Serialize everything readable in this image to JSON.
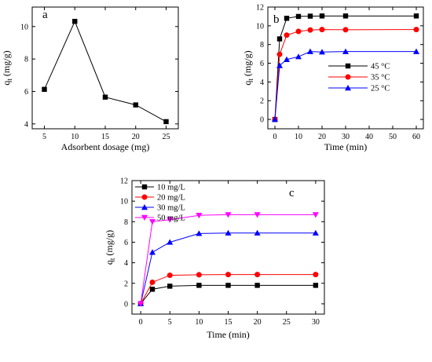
{
  "chart_data": [
    {
      "type": "line",
      "panel_label": "a",
      "xlabel": "Adsorbent dosage (mg)",
      "ylabel_main": "q",
      "ylabel_sub": "t",
      "ylabel_unit": " (mg/g)",
      "xlim": [
        3,
        27
      ],
      "ylim": [
        3.7,
        11.2
      ],
      "xticks": [
        5,
        10,
        15,
        20,
        25
      ],
      "yticks": [
        4,
        6,
        8,
        10
      ],
      "grid": false,
      "series": [
        {
          "x": [
            5,
            10,
            15,
            20,
            25
          ],
          "values": [
            6.13,
            10.32,
            5.65,
            5.17,
            4.14
          ],
          "color": "#000000",
          "marker": "square"
        }
      ]
    },
    {
      "type": "line",
      "panel_label": "b",
      "xlabel": "Time (min)",
      "ylabel_main": "q",
      "ylabel_sub": "t",
      "ylabel_unit": " (mg/g)",
      "xlim": [
        -3,
        63
      ],
      "ylim": [
        -1,
        12
      ],
      "xticks": [
        0,
        10,
        20,
        30,
        40,
        50,
        60
      ],
      "yticks": [
        0,
        2,
        4,
        6,
        8,
        10,
        12
      ],
      "grid": false,
      "legend_position": "right",
      "series": [
        {
          "name": "45 °C",
          "x": [
            0,
            2,
            5,
            10,
            15,
            20,
            30,
            60
          ],
          "values": [
            0,
            8.6,
            10.8,
            11.0,
            11.03,
            11.05,
            11.05,
            11.05
          ],
          "color": "#000000",
          "marker": "square"
        },
        {
          "name": "35 °C",
          "x": [
            0,
            2,
            5,
            10,
            15,
            20,
            30,
            60
          ],
          "values": [
            0,
            6.95,
            9.0,
            9.4,
            9.55,
            9.6,
            9.58,
            9.6
          ],
          "color": "#ff0000",
          "marker": "circle"
        },
        {
          "name": "25 °C",
          "x": [
            0,
            2,
            5,
            10,
            15,
            20,
            30,
            60
          ],
          "values": [
            0,
            5.75,
            6.4,
            6.7,
            7.25,
            7.2,
            7.25,
            7.25
          ],
          "color": "#0000ff",
          "marker": "triangle-up"
        }
      ]
    },
    {
      "type": "line",
      "panel_label": "c",
      "xlabel": "Time (min)",
      "ylabel_main": "q",
      "ylabel_sub": "t",
      "ylabel_unit": " (mg/g)",
      "xlim": [
        -1.5,
        31.5
      ],
      "ylim": [
        -1,
        12
      ],
      "xticks": [
        0,
        5,
        10,
        15,
        20,
        25,
        30
      ],
      "yticks": [
        0,
        2,
        4,
        6,
        8,
        10,
        12
      ],
      "grid": false,
      "legend_position": "top-left",
      "series": [
        {
          "name": "10 mg/L",
          "x": [
            0,
            2,
            5,
            10,
            15,
            20,
            30
          ],
          "values": [
            0.02,
            1.42,
            1.72,
            1.8,
            1.8,
            1.8,
            1.8
          ],
          "color": "#000000",
          "marker": "square"
        },
        {
          "name": "20 mg/L",
          "x": [
            0,
            2,
            5,
            10,
            15,
            20,
            30
          ],
          "values": [
            0.02,
            2.1,
            2.78,
            2.83,
            2.85,
            2.85,
            2.85
          ],
          "color": "#ff0000",
          "marker": "circle"
        },
        {
          "name": "30 mg/L",
          "x": [
            0,
            2,
            5,
            10,
            15,
            20,
            30
          ],
          "values": [
            0.02,
            5.02,
            6.0,
            6.85,
            6.9,
            6.9,
            6.9
          ],
          "color": "#0000ff",
          "marker": "triangle-up"
        },
        {
          "name": "50 mg/L",
          "x": [
            0,
            2,
            5,
            10,
            15,
            20,
            30
          ],
          "values": [
            0.02,
            8.0,
            8.2,
            8.62,
            8.68,
            8.68,
            8.68
          ],
          "color": "#ff00ff",
          "marker": "triangle-down"
        }
      ]
    }
  ]
}
